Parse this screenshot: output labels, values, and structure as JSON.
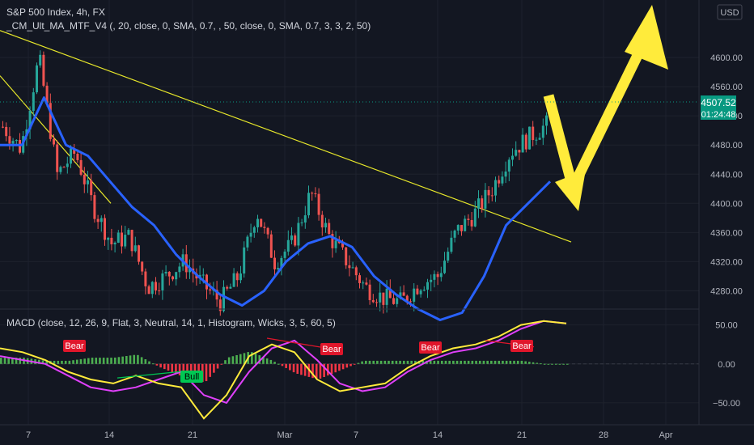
{
  "header": {
    "symbol_title": "S&P 500 Index, 4h, FX",
    "indicator_title": "_CM_Ult_MA_MTF_V4 (, 20, close, 0, SMA, 0.7, , 50, close, 0, SMA, 0.7, 3, 3, 2, 50)",
    "currency_badge": "USD"
  },
  "price_pane": {
    "y_ticks": [
      "4600.00",
      "4560.00",
      "4520.00",
      "4480.00",
      "4440.00",
      "4400.00",
      "4360.00",
      "4320.00",
      "4280.00"
    ],
    "last_price_label": "4507.52",
    "countdown_label": "01:24:48"
  },
  "macd_pane": {
    "title": "MACD (close, 12, 26, 9, Flat, 3, Neutral, 14, 1, Histogram, Wicks, 3, 5, 60, 5)",
    "y_ticks": [
      "50.00",
      "0.00",
      "−50.00"
    ],
    "signals": [
      {
        "label": "Bear",
        "type": "bear"
      },
      {
        "label": "Bull",
        "type": "bull"
      },
      {
        "label": "Bear",
        "type": "bear"
      },
      {
        "label": "Bear",
        "type": "bear"
      },
      {
        "label": "Bear",
        "type": "bear"
      }
    ]
  },
  "time_axis": {
    "labels": [
      "7",
      "14",
      "21",
      "Mar",
      "7",
      "14",
      "21",
      "28",
      "Apr"
    ]
  },
  "chart_data": {
    "type": "candlestick",
    "title": "S&P 500 Index, 4h, FX",
    "ylim": [
      4255,
      4640
    ],
    "x_labels": [
      "7",
      "14",
      "21",
      "Mar",
      "7",
      "14",
      "21",
      "28",
      "Apr"
    ],
    "last_price": 4507.52,
    "colors": {
      "up": "#26a69a",
      "down": "#ef5350",
      "ma": "#2962ff",
      "trendline": "#e6e62a",
      "arrow": "#ffeb3b",
      "macd_line": "#ffeb3b",
      "signal_line": "#e040fb",
      "bear_label": "#e0162b",
      "bull_label": "#00c853"
    },
    "series": [
      {
        "name": "price",
        "values": [
          4505,
          4475,
          4600,
          4440,
          4470,
          4395,
          4345,
          4355,
          4285,
          4300,
          4320,
          4290,
          4265,
          4300,
          4390,
          4320,
          4345,
          4415,
          4355,
          4320,
          4285,
          4270,
          4265,
          4290,
          4300,
          4360,
          4385,
          4420,
          4470,
          4490,
          4508
        ]
      },
      {
        "name": "ma",
        "values": [
          4480,
          4480,
          4545,
          4480,
          4465,
          4430,
          4395,
          4370,
          4330,
          4300,
          4275,
          4260,
          4280,
          4320,
          4345,
          4355,
          4340,
          4300,
          4275,
          4255,
          4240,
          4250,
          4300,
          4370,
          4400,
          4430
        ]
      }
    ],
    "macd": {
      "ylim": [
        -75,
        60
      ],
      "macd_line": [
        20,
        15,
        5,
        -10,
        -20,
        -25,
        -15,
        -25,
        -30,
        -70,
        -40,
        10,
        25,
        15,
        -20,
        -35,
        -30,
        -25,
        -5,
        10,
        20,
        25,
        35,
        50,
        55,
        52
      ],
      "signal_line": [
        10,
        5,
        0,
        -15,
        -30,
        -35,
        -30,
        -20,
        -10,
        -40,
        -50,
        -10,
        20,
        30,
        5,
        -25,
        -35,
        -30,
        -10,
        5,
        15,
        20,
        30,
        45,
        55,
        52
      ]
    }
  }
}
